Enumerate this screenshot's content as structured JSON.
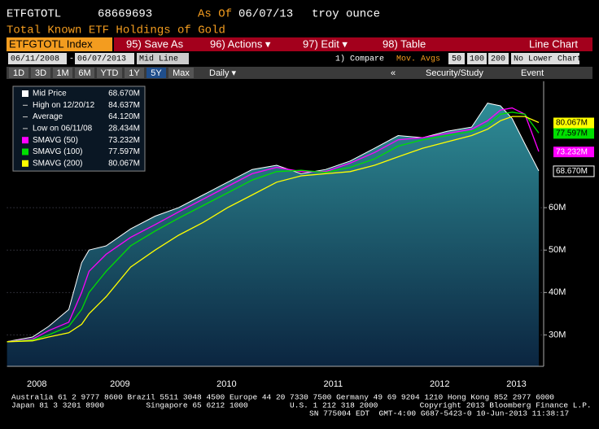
{
  "header": {
    "ticker": "ETFGTOTL",
    "value": "68669693",
    "as_of_label": "As Of",
    "as_of_date": "06/07/13",
    "unit": "troy ounce",
    "subtitle": "Total Known ETF Holdings of Gold"
  },
  "toolbar": {
    "security": "ETFGTOTL Index",
    "save_as": "95) Save As",
    "actions": "96) Actions ▾",
    "edit": "97) Edit ▾",
    "table": "98) Table",
    "chart_type": "Line Chart"
  },
  "controls": {
    "start_date": "06/11/2008",
    "dash": "-",
    "end_date": "06/07/2013",
    "mode": "Mid Line",
    "compare": "1) Compare",
    "mov_avgs": "Mov. Avgs",
    "avg1": "50",
    "avg2": "100",
    "avg3": "200",
    "lower": "No Lower Chart"
  },
  "ranges": {
    "buttons": [
      "1D",
      "3D",
      "1M",
      "6M",
      "YTD",
      "1Y",
      "5Y",
      "Max"
    ],
    "period": "Daily ▾",
    "collapse": "«",
    "study": "Security/Study",
    "event": "Event"
  },
  "chart_data": {
    "type": "line",
    "x": [
      2008.44,
      2008.68,
      2008.83,
      2009.02,
      2009.14,
      2009.21,
      2009.37,
      2009.6,
      2009.83,
      2010.05,
      2010.28,
      2010.51,
      2010.74,
      2010.97,
      2011.2,
      2011.43,
      2011.66,
      2011.89,
      2012.11,
      2012.34,
      2012.57,
      2012.8,
      2012.95,
      2013.07,
      2013.18,
      2013.3,
      2013.43
    ],
    "series": [
      {
        "name": "Mid Price",
        "color": "#ffffff",
        "last_label": "68.670M",
        "values": [
          28.434,
          29.5,
          32,
          36,
          47,
          50,
          51,
          55,
          58,
          60,
          63,
          66,
          69,
          70,
          68,
          69,
          71,
          74,
          77,
          76.5,
          78,
          79,
          84.637,
          84,
          81,
          75,
          68.67
        ]
      },
      {
        "name": "SMAVG (50)",
        "color": "#ff00ff",
        "last_label": "73.232M",
        "values": [
          28.4,
          29,
          31,
          33,
          40,
          45,
          49,
          53,
          56,
          59,
          62,
          65,
          68,
          69.5,
          68.5,
          68.5,
          70.5,
          73,
          76,
          76.5,
          77.5,
          78.5,
          80.5,
          83,
          83.5,
          82,
          73.232
        ]
      },
      {
        "name": "SMAVG (100)",
        "color": "#00e000",
        "last_label": "77.597M",
        "values": [
          28.4,
          28.8,
          30,
          32,
          36,
          40,
          45,
          51,
          54.5,
          57.5,
          60.5,
          63.5,
          66.5,
          68.5,
          68.8,
          68.3,
          69.5,
          71.5,
          74.5,
          76,
          77,
          78,
          79.5,
          82,
          82.5,
          82,
          77.597
        ]
      },
      {
        "name": "SMAVG (200)",
        "color": "#ffff00",
        "last_label": "80.067M",
        "values": [
          28.4,
          28.6,
          29.5,
          30.5,
          32.5,
          35,
          39,
          46,
          50,
          53.5,
          56.5,
          60,
          63,
          66,
          67.5,
          68,
          68.5,
          70,
          72,
          74,
          75.5,
          77,
          78.5,
          80.5,
          81.5,
          81.5,
          80.067
        ]
      }
    ],
    "stats": [
      {
        "label": "High on 12/20/12",
        "value": "84.637M"
      },
      {
        "label": "Average",
        "value": "64.120M"
      },
      {
        "label": "Low on 06/11/08",
        "value": "28.434M"
      }
    ],
    "xlim": [
      2008.44,
      2013.43
    ],
    "xticks": [
      {
        "value": 2008.72,
        "label": "2008"
      },
      {
        "value": 2009.5,
        "label": "2009"
      },
      {
        "value": 2010.5,
        "label": "2010"
      },
      {
        "value": 2011.5,
        "label": "2011"
      },
      {
        "value": 2012.5,
        "label": "2012"
      },
      {
        "value": 2013.22,
        "label": "2013"
      }
    ],
    "ylim": [
      22.6,
      89.8
    ],
    "yticks": [
      {
        "value": 30,
        "label": "30M"
      },
      {
        "value": 40,
        "label": "40M"
      },
      {
        "value": 50,
        "label": "50M"
      },
      {
        "value": 60,
        "label": "60M"
      }
    ],
    "grid": true
  },
  "footer": {
    "line1": "Australia 61 2 9777 8600 Brazil 5511 3048 4500 Europe 44 20 7330 7500 Germany 49 69 9204 1210 Hong Kong 852 2977 6000",
    "line2": "Japan 81 3 3201 8900         Singapore 65 6212 1000         U.S. 1 212 318 2000         Copyright 2013 Bloomberg Finance L.P.",
    "line3": "SN 775004 EDT  GMT-4:00 G687-5423-0 10-Jun-2013 11:38:17"
  }
}
